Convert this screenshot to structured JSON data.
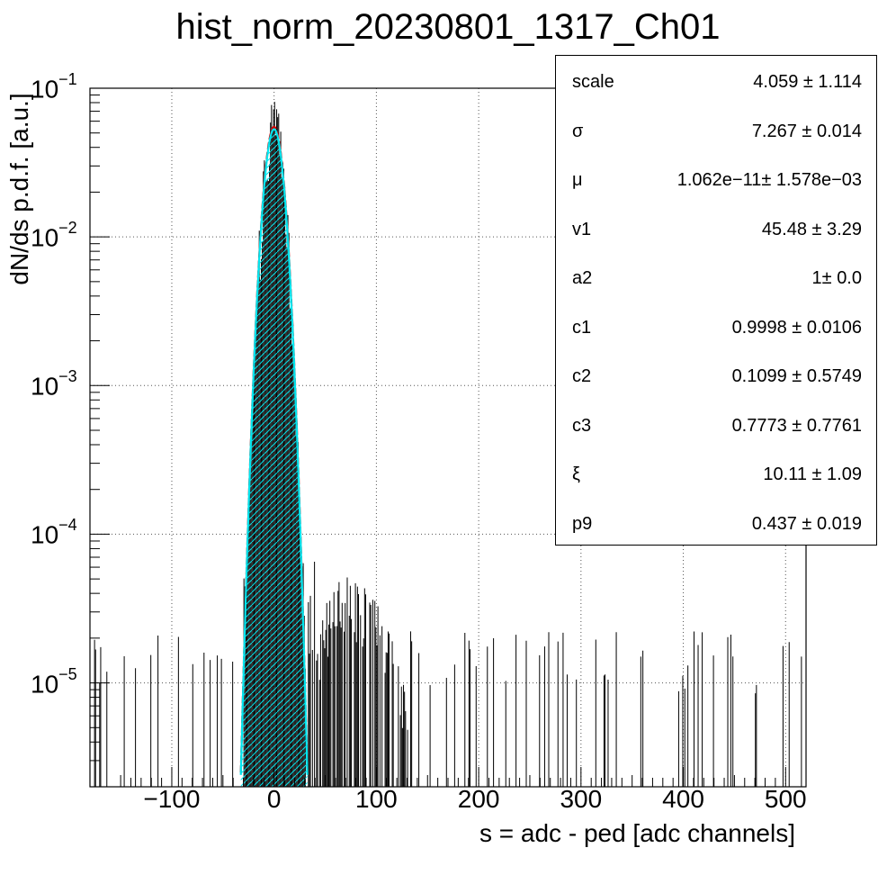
{
  "chart_data": {
    "type": "histogram",
    "title": "hist_norm_20230801_1317_Ch01",
    "xlabel": "s = adc - ped [adc channels]",
    "ylabel": "dN/ds p.d.f. [a.u.]",
    "xlim": [
      -180,
      520
    ],
    "ylim": [
      2e-06,
      0.1
    ],
    "yscale": "log",
    "grid": true,
    "x_ticks": [
      {
        "value": -100,
        "label": "−100"
      },
      {
        "value": 0,
        "label": "0"
      },
      {
        "value": 100,
        "label": "100"
      },
      {
        "value": 200,
        "label": "200"
      },
      {
        "value": 300,
        "label": "300"
      },
      {
        "value": 400,
        "label": "400"
      },
      {
        "value": 500,
        "label": "500"
      }
    ],
    "y_ticks": [
      {
        "value": 0.1,
        "base": "10",
        "exp": "−1"
      },
      {
        "value": 0.01,
        "base": "10",
        "exp": "−2"
      },
      {
        "value": 0.001,
        "base": "10",
        "exp": "−3"
      },
      {
        "value": 0.0001,
        "base": "10",
        "exp": "−4"
      },
      {
        "value": 1e-05,
        "base": "10",
        "exp": "−5"
      }
    ],
    "series": [
      {
        "kind": "data-histogram",
        "color": "#000000"
      },
      {
        "kind": "fit",
        "color": "#cc0000",
        "peak": 0.055,
        "mu": 0,
        "sigma": 7.267
      },
      {
        "kind": "pedestal-component",
        "color": "#00e5ee",
        "fill": "hatched",
        "peak": 0.053,
        "mu": 0,
        "sigma": 7.267
      }
    ],
    "stats": [
      {
        "name": "scale",
        "value": "4.059 ± 1.114"
      },
      {
        "name": "σ",
        "value": "7.267 ± 0.014"
      },
      {
        "name": "μ",
        "value": "1.062e−11± 1.578e−03"
      },
      {
        "name": "v1",
        "value": "45.48 ± 3.29"
      },
      {
        "name": "a2",
        "value": "1± 0.0"
      },
      {
        "name": "c1",
        "value": "0.9998 ± 0.0106"
      },
      {
        "name": "c2",
        "value": "0.1099 ± 0.5749"
      },
      {
        "name": "c3",
        "value": "0.7773 ± 0.7761"
      },
      {
        "name": "ξ",
        "value": "10.11 ± 1.09"
      },
      {
        "name": "p9",
        "value": "0.437 ± 0.019"
      }
    ]
  }
}
